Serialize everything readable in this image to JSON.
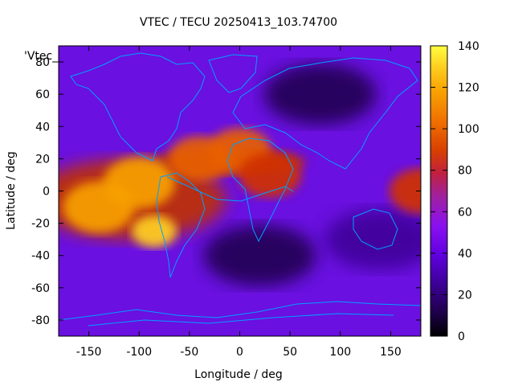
{
  "chart_data": {
    "type": "heatmap",
    "title": "VTEC / TECU 20250413_103.74700",
    "xlabel": "Longitude / deg",
    "ylabel": "Latitude / deg",
    "legend_key": "'Vtec_",
    "xlim": [
      -180,
      180
    ],
    "ylim": [
      -90,
      90
    ],
    "x_ticks": [
      -150,
      -100,
      -50,
      0,
      50,
      100,
      150
    ],
    "y_ticks": [
      -80,
      -60,
      -40,
      -20,
      0,
      20,
      40,
      60,
      80
    ],
    "colorbar": {
      "range": [
        0,
        140
      ],
      "ticks": [
        0,
        20,
        40,
        60,
        80,
        100,
        120,
        140
      ],
      "palette": [
        "#000000",
        "#2a0064",
        "#5a00c8",
        "#8a10f0",
        "#b020b0",
        "#cc3000",
        "#e86000",
        "#f8a000",
        "#ffe040",
        "#ffff60"
      ]
    },
    "grid": false,
    "enhancements": [
      {
        "lon": -85,
        "lat": -25,
        "value": 130
      },
      {
        "lon": -100,
        "lat": 5,
        "value": 110
      },
      {
        "lon": -140,
        "lat": -10,
        "value": 100
      },
      {
        "lon": -40,
        "lat": 20,
        "value": 85
      },
      {
        "lon": 0,
        "lat": 25,
        "value": 80
      },
      {
        "lon": 30,
        "lat": 10,
        "value": 70
      },
      {
        "lon": 180,
        "lat": 0,
        "value": 75
      }
    ],
    "depletions": [
      {
        "lon": 20,
        "lat": -40,
        "value": 8
      },
      {
        "lon": 80,
        "lat": 60,
        "value": 10
      },
      {
        "lon": 140,
        "lat": -30,
        "value": 18
      }
    ],
    "coastline_color": "#00a0ff"
  }
}
